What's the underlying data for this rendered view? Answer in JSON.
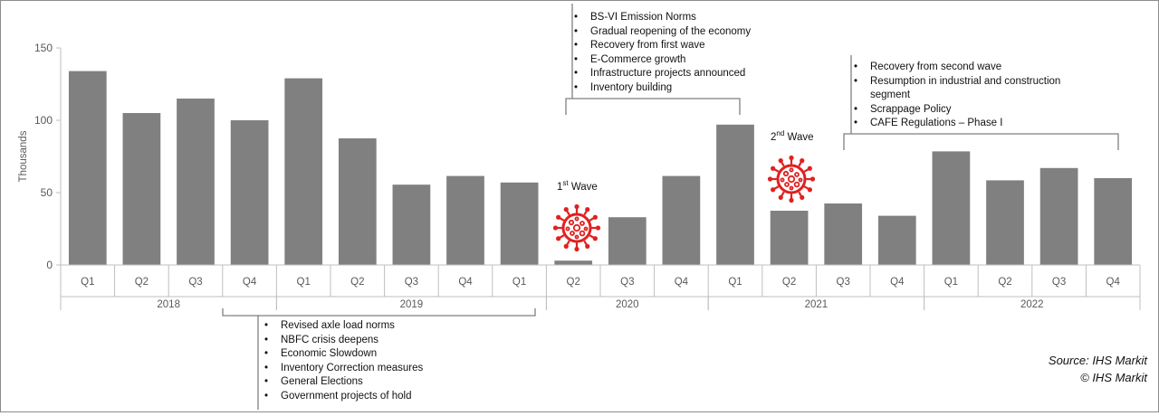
{
  "chart_data": {
    "type": "bar",
    "ylabel": "Thousands",
    "ylim": [
      0,
      150
    ],
    "yticks": [
      0,
      50,
      100,
      150
    ],
    "bar_color": "#808080",
    "categories": [
      "Q1",
      "Q2",
      "Q3",
      "Q4",
      "Q1",
      "Q2",
      "Q3",
      "Q4",
      "Q1",
      "Q2",
      "Q3",
      "Q4",
      "Q1",
      "Q2",
      "Q3",
      "Q4",
      "Q1",
      "Q2",
      "Q3",
      "Q4"
    ],
    "years": [
      {
        "label": "2018",
        "start": 0,
        "count": 4
      },
      {
        "label": "2019",
        "start": 4,
        "count": 5
      },
      {
        "label": "2020",
        "start": 9,
        "count": 3
      },
      {
        "label": "2021",
        "start": 12,
        "count": 4
      },
      {
        "label": "2022",
        "start": 16,
        "count": 4
      }
    ],
    "values": [
      134,
      105,
      115,
      100,
      129,
      87.5,
      55.5,
      61.5,
      57,
      3,
      33,
      61.5,
      97,
      37.5,
      42.5,
      34,
      78.5,
      58.5,
      67,
      60
    ]
  },
  "annotations": {
    "top_2020": [
      "BS-VI Emission Norms",
      "Gradual reopening of the economy",
      "Recovery from first wave",
      "E-Commerce growth",
      "Infrastructure projects announced",
      "Inventory building"
    ],
    "top_2021": [
      "Recovery from second wave",
      "Resumption in industrial and construction segment",
      "Scrappage Policy",
      "CAFE Regulations – Phase I"
    ],
    "bottom_2019": [
      "Revised axle load norms",
      "NBFC crisis deepens",
      "Economic Slowdown",
      "Inventory Correction measures",
      "General Elections",
      "Government projects of hold"
    ]
  },
  "waves": {
    "first": {
      "num": "1",
      "sup": "st",
      "text": "Wave"
    },
    "second": {
      "num": "2",
      "sup": "nd",
      "text": "Wave"
    }
  },
  "virus_color": "#e02020",
  "source": {
    "line1": "Source: IHS Markit",
    "line2": "© IHS Markit"
  }
}
